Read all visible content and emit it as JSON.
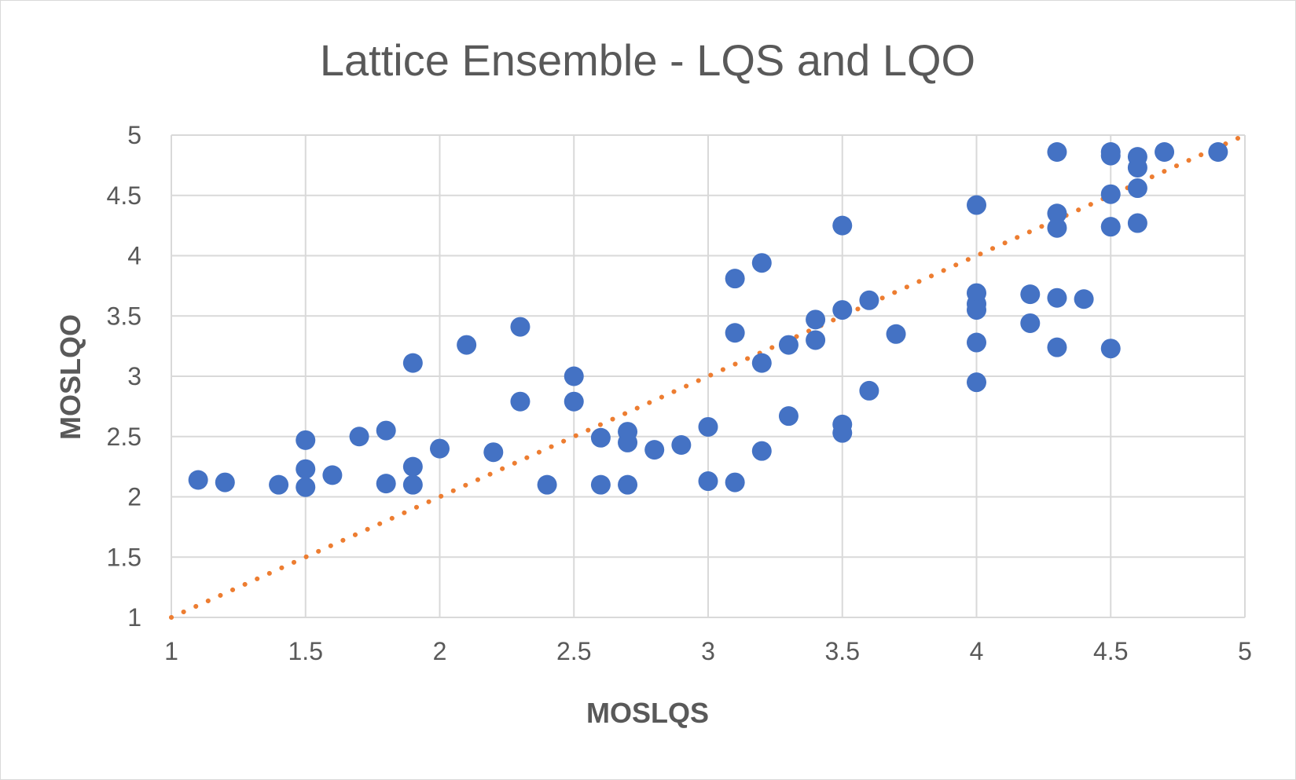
{
  "chart_data": {
    "type": "scatter",
    "title": "Lattice Ensemble - LQS and LQO",
    "xlabel": "MOSLQS",
    "ylabel": "MOSLQO",
    "xlim": [
      1,
      5
    ],
    "ylim": [
      1,
      5
    ],
    "x_ticks": [
      "1",
      "1.5",
      "2",
      "2.5",
      "3",
      "3.5",
      "4",
      "4.5",
      "5"
    ],
    "y_ticks": [
      "1",
      "1.5",
      "2",
      "2.5",
      "3",
      "3.5",
      "4",
      "4.5",
      "5"
    ],
    "grid": true,
    "legend": "none",
    "colors": {
      "points": "#4472C4",
      "trendline": "#ED7D31",
      "grid": "#d9d9d9",
      "text": "#595959"
    },
    "series": [
      {
        "kind": "points",
        "points": [
          [
            1.1,
            2.14
          ],
          [
            1.2,
            2.12
          ],
          [
            1.4,
            2.1
          ],
          [
            1.5,
            2.47
          ],
          [
            1.5,
            2.23
          ],
          [
            1.5,
            2.08
          ],
          [
            1.6,
            2.18
          ],
          [
            1.7,
            2.5
          ],
          [
            1.8,
            2.55
          ],
          [
            1.8,
            2.11
          ],
          [
            1.9,
            3.11
          ],
          [
            1.9,
            2.25
          ],
          [
            1.9,
            2.1
          ],
          [
            2.0,
            2.4
          ],
          [
            2.1,
            3.26
          ],
          [
            2.2,
            2.37
          ],
          [
            2.3,
            3.41
          ],
          [
            2.3,
            2.79
          ],
          [
            2.4,
            2.1
          ],
          [
            2.5,
            3.0
          ],
          [
            2.5,
            2.79
          ],
          [
            2.6,
            2.49
          ],
          [
            2.6,
            2.1
          ],
          [
            2.7,
            2.54
          ],
          [
            2.7,
            2.45
          ],
          [
            2.7,
            2.1
          ],
          [
            2.8,
            2.39
          ],
          [
            2.9,
            2.43
          ],
          [
            3.0,
            2.58
          ],
          [
            3.0,
            2.13
          ],
          [
            3.1,
            3.81
          ],
          [
            3.1,
            3.36
          ],
          [
            3.1,
            2.12
          ],
          [
            3.2,
            3.94
          ],
          [
            3.2,
            3.11
          ],
          [
            3.2,
            2.38
          ],
          [
            3.3,
            3.26
          ],
          [
            3.3,
            2.67
          ],
          [
            3.4,
            3.47
          ],
          [
            3.4,
            3.3
          ],
          [
            3.5,
            4.25
          ],
          [
            3.5,
            3.55
          ],
          [
            3.5,
            2.6
          ],
          [
            3.5,
            2.53
          ],
          [
            3.6,
            3.63
          ],
          [
            3.6,
            2.88
          ],
          [
            3.7,
            3.35
          ],
          [
            4.0,
            4.42
          ],
          [
            4.0,
            3.69
          ],
          [
            4.0,
            3.6
          ],
          [
            4.0,
            3.55
          ],
          [
            4.0,
            3.28
          ],
          [
            4.0,
            2.95
          ],
          [
            4.2,
            3.68
          ],
          [
            4.2,
            3.44
          ],
          [
            4.3,
            4.86
          ],
          [
            4.3,
            4.35
          ],
          [
            4.3,
            4.23
          ],
          [
            4.3,
            3.65
          ],
          [
            4.3,
            3.24
          ],
          [
            4.4,
            3.64
          ],
          [
            4.5,
            4.86
          ],
          [
            4.5,
            4.83
          ],
          [
            4.5,
            4.51
          ],
          [
            4.5,
            4.24
          ],
          [
            4.5,
            3.23
          ],
          [
            4.6,
            4.82
          ],
          [
            4.6,
            4.73
          ],
          [
            4.6,
            4.56
          ],
          [
            4.6,
            4.27
          ],
          [
            4.7,
            4.86
          ],
          [
            4.9,
            4.86
          ]
        ]
      },
      {
        "kind": "trendline",
        "style": "dotted",
        "points": [
          [
            1,
            1
          ],
          [
            5,
            5
          ]
        ]
      }
    ]
  }
}
